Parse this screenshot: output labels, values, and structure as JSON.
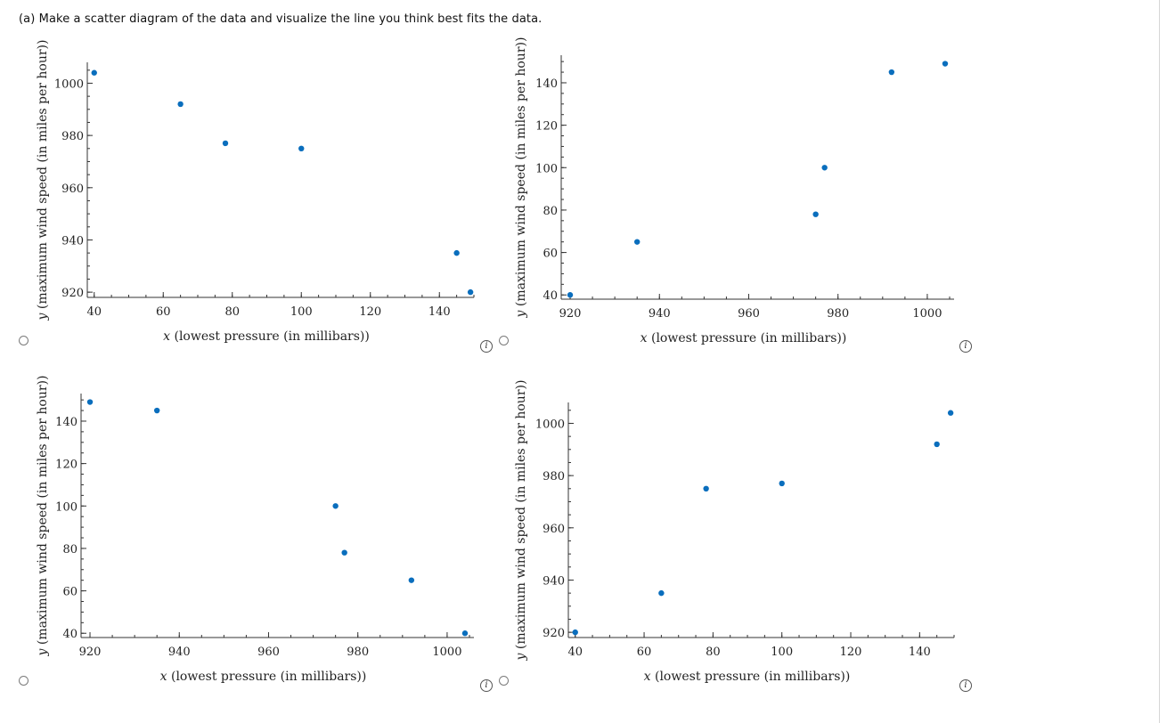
{
  "prompt": "(a) Make a scatter diagram of the data and visualize the line you think best fits the data.",
  "options": [
    {
      "id": "A",
      "selected": false
    },
    {
      "id": "B",
      "selected": false
    },
    {
      "id": "C",
      "selected": false
    },
    {
      "id": "D",
      "selected": false
    }
  ],
  "info_icon": "i",
  "point_color": "#0a6ebd",
  "chart_data": [
    {
      "type": "scatter",
      "xlabel_var": "x",
      "xlabel": "(lowest pressure (in millibars))",
      "ylabel_var": "y",
      "ylabel": "(maximum wind speed (in miles per hour))",
      "xlim": [
        38,
        150
      ],
      "ylim": [
        918,
        1008
      ],
      "xticks": [
        40,
        60,
        80,
        100,
        120,
        140
      ],
      "yticks": [
        920,
        940,
        960,
        980,
        1000
      ],
      "x_minor_step": 5,
      "y_minor_step": 5,
      "points": [
        [
          40,
          1004
        ],
        [
          65,
          992
        ],
        [
          78,
          977
        ],
        [
          100,
          975
        ],
        [
          145,
          935
        ],
        [
          149,
          920
        ]
      ],
      "grid": false
    },
    {
      "type": "scatter",
      "xlabel_var": "x",
      "xlabel": "(lowest pressure (in millibars))",
      "ylabel_var": "y",
      "ylabel": "(maximum wind speed (in miles per hour))",
      "xlim": [
        918,
        1006
      ],
      "ylim": [
        38,
        153
      ],
      "xticks": [
        920,
        940,
        960,
        980,
        1000
      ],
      "yticks": [
        40,
        60,
        80,
        100,
        120,
        140
      ],
      "x_minor_step": 5,
      "y_minor_step": 5,
      "points": [
        [
          920,
          40
        ],
        [
          935,
          65
        ],
        [
          975,
          78
        ],
        [
          977,
          100
        ],
        [
          992,
          145
        ],
        [
          1004,
          149
        ]
      ],
      "grid": false
    },
    {
      "type": "scatter",
      "xlabel_var": "x",
      "xlabel": "(lowest pressure (in millibars))",
      "ylabel_var": "y",
      "ylabel": "(maximum wind speed (in miles per hour))",
      "xlim": [
        918,
        1006
      ],
      "ylim": [
        38,
        153
      ],
      "xticks": [
        920,
        940,
        960,
        980,
        1000
      ],
      "yticks": [
        40,
        60,
        80,
        100,
        120,
        140
      ],
      "x_minor_step": 5,
      "y_minor_step": 5,
      "points": [
        [
          920,
          149
        ],
        [
          935,
          145
        ],
        [
          975,
          100
        ],
        [
          977,
          78
        ],
        [
          992,
          65
        ],
        [
          1004,
          40
        ]
      ],
      "grid": false
    },
    {
      "type": "scatter",
      "xlabel_var": "x",
      "xlabel": "(lowest pressure (in millibars))",
      "ylabel_var": "y",
      "ylabel": "(maximum wind speed (in miles per hour))",
      "xlim": [
        38,
        150
      ],
      "ylim": [
        918,
        1008
      ],
      "xticks": [
        40,
        60,
        80,
        100,
        120,
        140
      ],
      "yticks": [
        920,
        940,
        960,
        980,
        1000
      ],
      "x_minor_step": 5,
      "y_minor_step": 5,
      "points": [
        [
          40,
          920
        ],
        [
          65,
          935
        ],
        [
          78,
          975
        ],
        [
          100,
          977
        ],
        [
          145,
          992
        ],
        [
          149,
          1004
        ]
      ],
      "grid": false
    }
  ]
}
